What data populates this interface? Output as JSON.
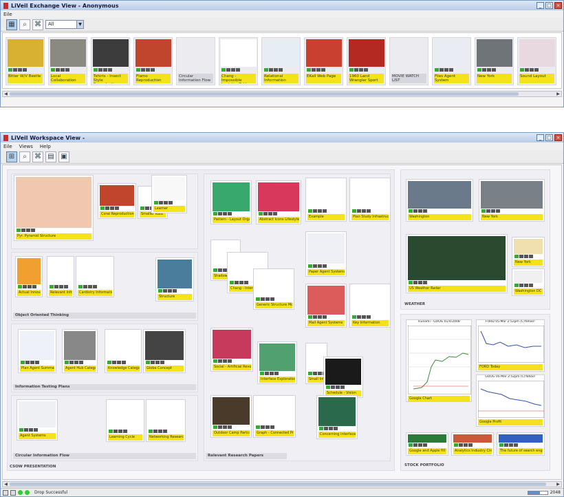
{
  "exchange": {
    "title": "LiVeil Exchange View - Anonymous",
    "menu": [
      "Eile"
    ],
    "filter_value": "All",
    "cards": [
      {
        "label": "Bitter W/V Beetle",
        "img": "#d8b032"
      },
      {
        "label": "Local Collaboration",
        "img": "#8a8a80"
      },
      {
        "label": "Tshirts - Insect Style Reproduction",
        "img": "#3c3c3c"
      },
      {
        "label": "Flamo Reproduction",
        "img": "#c0452c"
      },
      {
        "label": "Circular Information Flow",
        "img": ""
      },
      {
        "label": "Chang - Impossible Logistics Table",
        "img": "#ffffff"
      },
      {
        "label": "Relational Information",
        "img": "#e6eef4"
      },
      {
        "label": "EKall Web Page",
        "img": "#c94030"
      },
      {
        "label": "1960 Land Wrangler Sport",
        "img": "#b42a22"
      },
      {
        "label": "MOVIE WATCH LIST",
        "img": ""
      },
      {
        "label": "Files Agent System",
        "img": "#e9ecf2"
      },
      {
        "label": "New York",
        "img": "#6f7478"
      },
      {
        "label": "Sound Layout",
        "img": "#e8d8e0"
      }
    ]
  },
  "workspace": {
    "title": "LiVeil Workspace View -",
    "menu": [
      "Eile",
      "Views",
      "Help"
    ],
    "panels": {
      "object": "Object Oriented Thinking",
      "info": "Information Testing Plans",
      "circular": "Circular Information Flow",
      "related": "Relevant Research Papers",
      "weather": "WEATHER",
      "stock": "STOCK PORTFOLIO",
      "csow": "CSOW PRESENTATION"
    },
    "items": {
      "pyramid": "Pyr. Pyramid Structure",
      "coral": "Coral Reproduction",
      "small1": "Smaller Rate",
      "flow1": "Learner",
      "pattern": "Pattern - Layout Organization Tree",
      "abstract": "Abstract Icons Lifestyle and Signs",
      "ex1": "Example",
      "ex2": "Plan Study Infrastructure",
      "actual": "Actual Innovation",
      "relevant": "Relevant Information",
      "cardistry": "Cardistry Information",
      "structure": "Structure",
      "shadow": "Shadow",
      "paper1": "Paper Agent Systems",
      "flow2": "Gmail Flow",
      "change": "Chang - Internet Cognitive Dissemina",
      "generic": "Generic Structure Modeling",
      "mail": "Mail Agent Systems",
      "exp": "Relative Understanding",
      "ky": "Key Information",
      "plan": "Plan Agent Summary",
      "bg": "Agent Hub Categorization",
      "know": "Knowledge Categorization",
      "globe": "Globe Concept",
      "connect": "Social - Artificial Revolution",
      "inter": "Interface Exploration",
      "small2": "Small Interface",
      "sch": "Schedule - Vision",
      "agent": "Agent Systems",
      "network": "Networking Research Papers",
      "learning": "Learning Cycle",
      "outdoor": "Outdoor Camp Participation",
      "connect2": "Graph - Connected Projects",
      "ongoing": "Concerning Interface Context",
      "wash": "Washington",
      "ny": "New York",
      "usa": "US Weather Radar",
      "sunny": "New York",
      "cloud": "Washington DC",
      "goog1": "Google Chart",
      "goog2": "FORD Today",
      "goog3": "Google Profit",
      "cam1": "Google and Apple fill their shares",
      "cam2": "Analytics Industry Circulation",
      "cam3": "The future of search engine Insight"
    },
    "stock": {
      "goog_title": "Tsunami - GOOG 01/4/2008",
      "ford_title": "FORD 05-Mar 2:52pm (C)Yahoo!",
      "goog2_title": "GOOG 05-Mar 2:52pm (C)Yahoo!",
      "goog_ticks": [
        "10am",
        "12pm",
        "2pm"
      ]
    },
    "status": "Drop Successful",
    "zoom": "2048"
  }
}
